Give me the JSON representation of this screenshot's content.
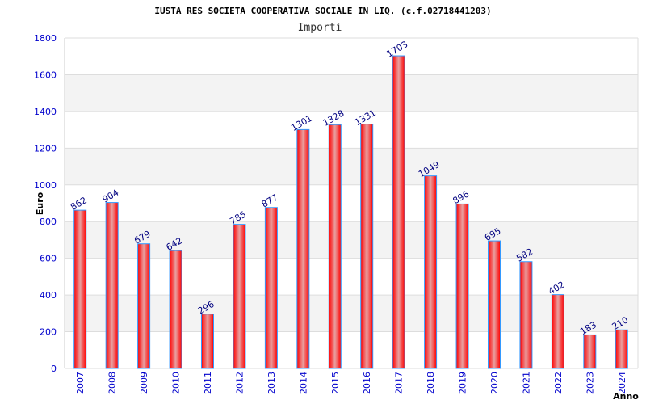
{
  "chart_data": {
    "type": "bar",
    "title": "IUSTA RES SOCIETA COOPERATIVA SOCIALE IN LIQ. (c.f.02718441203)",
    "subtitle": "Importi",
    "xlabel": "Anno",
    "ylabel": "Euro",
    "ylim": [
      0,
      1800
    ],
    "yticks": [
      0,
      200,
      400,
      600,
      800,
      1000,
      1200,
      1400,
      1600,
      1800
    ],
    "categories": [
      "2007",
      "2008",
      "2009",
      "2010",
      "2011",
      "2012",
      "2013",
      "2014",
      "2015",
      "2016",
      "2017",
      "2018",
      "2019",
      "2020",
      "2021",
      "2022",
      "2023",
      "2024"
    ],
    "values": [
      862,
      904,
      679,
      642,
      296,
      785,
      877,
      1301,
      1328,
      1331,
      1703,
      1049,
      896,
      695,
      582,
      402,
      183,
      210
    ],
    "colors": {
      "bar": "#ff0000",
      "bar_highlight": "#e8a0a0",
      "bar_border": "#3399ff",
      "band": "#f3f3f3",
      "grid": "#dddddd"
    }
  }
}
